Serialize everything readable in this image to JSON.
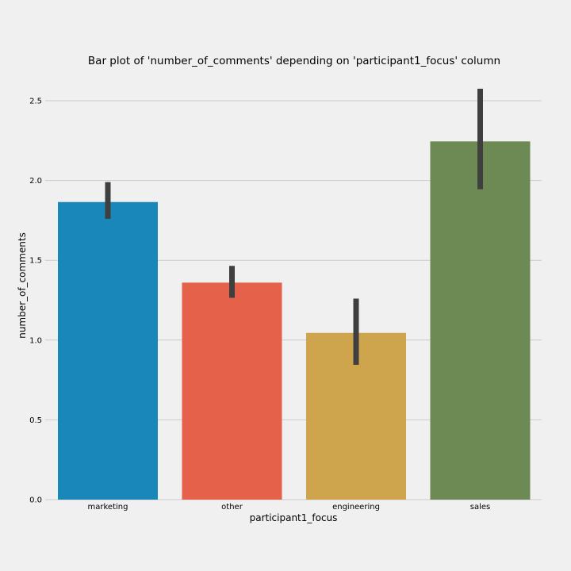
{
  "chart_data": {
    "type": "bar",
    "title": "Bar plot of 'number_of_comments' depending on 'participant1_focus' column",
    "xlabel": "participant1_focus",
    "ylabel": "number_of_comments",
    "categories": [
      "marketing",
      "other",
      "engineering",
      "sales"
    ],
    "values": [
      1.865,
      1.36,
      1.045,
      2.245
    ],
    "error_low": [
      1.76,
      1.265,
      0.845,
      1.945
    ],
    "error_high": [
      1.99,
      1.465,
      1.26,
      2.575
    ],
    "colors": [
      "#1a87bb",
      "#e5614a",
      "#cea54c",
      "#6d8a55"
    ],
    "error_color": "#3f3f3f",
    "ylim": [
      0,
      2.5
    ],
    "yticks": [
      "0.0",
      "0.5",
      "1.0",
      "1.5",
      "2.0",
      "2.5"
    ],
    "grid": "horizontal"
  }
}
